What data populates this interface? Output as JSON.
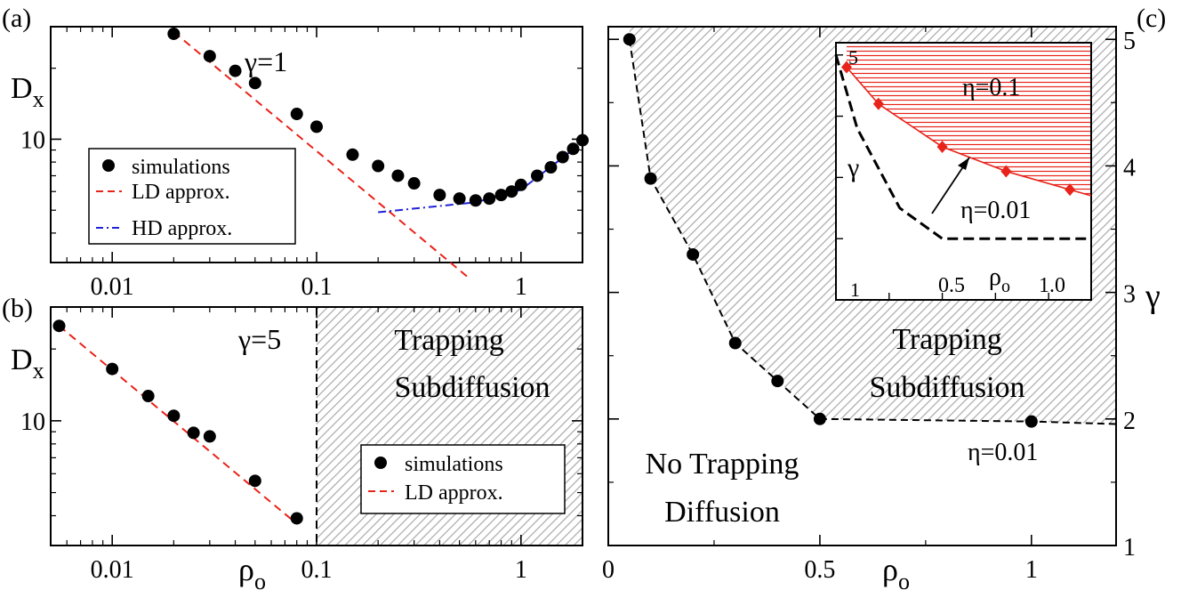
{
  "chart_data": [
    {
      "panel": "a",
      "panel_label": "(a)",
      "type": "scatter",
      "xscale": "log",
      "yscale": "log",
      "xlim": [
        0.005,
        2.0
      ],
      "ylim": [
        3.0,
        30.0
      ],
      "xticks": [
        {
          "v": 0.01,
          "label": "0.01"
        },
        {
          "v": 0.1,
          "label": "0.1"
        },
        {
          "v": 1,
          "label": "1"
        }
      ],
      "yticks": [
        {
          "v": 10,
          "label": "10"
        }
      ],
      "ylabel_main": "D",
      "ylabel_sub": "x",
      "annotation": "γ=1",
      "series": [
        {
          "name": "simulations",
          "kind": "points",
          "x": [
            0.02,
            0.03,
            0.04,
            0.05,
            0.08,
            0.1,
            0.15,
            0.2,
            0.25,
            0.3,
            0.4,
            0.5,
            0.6,
            0.7,
            0.8,
            0.9,
            1.0,
            1.2,
            1.4,
            1.6,
            1.8,
            2.0
          ],
          "y": [
            28,
            22.5,
            19.5,
            17.3,
            12.8,
            11.3,
            8.6,
            7.7,
            7.0,
            6.5,
            5.8,
            5.6,
            5.5,
            5.6,
            5.8,
            6.0,
            6.4,
            7.0,
            7.6,
            8.4,
            9.1,
            9.9
          ]
        },
        {
          "name": "LD approx.",
          "kind": "line",
          "color": "#e8231a",
          "dash": "dash",
          "x": [
            0.02,
            0.55
          ],
          "y": [
            28.5,
            2.6
          ]
        },
        {
          "name": "HD approx.",
          "kind": "line",
          "color": "#1f22d8",
          "dash": "dashdot",
          "x": [
            0.2,
            0.6,
            1.0,
            2.0
          ],
          "y": [
            4.9,
            5.4,
            6.1,
            9.7
          ]
        }
      ],
      "legend": [
        "simulations",
        "LD approx.",
        "HD approx."
      ]
    },
    {
      "panel": "b",
      "panel_label": "(b)",
      "type": "scatter",
      "xscale": "log",
      "yscale": "log",
      "xlim": [
        0.005,
        2.0
      ],
      "ylim": [
        3.0,
        30.0
      ],
      "xticks": [
        {
          "v": 0.01,
          "label": "0.01"
        },
        {
          "v": 0.1,
          "label": "0.1"
        },
        {
          "v": 1,
          "label": "1"
        }
      ],
      "yticks": [
        {
          "v": 10,
          "label": "10"
        }
      ],
      "ylabel_main": "D",
      "ylabel_sub": "x",
      "xlabel_main": "ρ",
      "xlabel_sub": "o",
      "annotation": "γ=5",
      "region_label": [
        "Trapping",
        "Subdiffusion"
      ],
      "trapping_boundary_x": 0.1,
      "series": [
        {
          "name": "simulations",
          "kind": "points",
          "x": [
            0.0055,
            0.01,
            0.015,
            0.02,
            0.025,
            0.03,
            0.05,
            0.08
          ],
          "y": [
            25,
            16.5,
            12.7,
            10.5,
            8.9,
            8.6,
            5.6,
            3.9
          ]
        },
        {
          "name": "LD approx.",
          "kind": "line",
          "color": "#e8231a",
          "dash": "dash",
          "x": [
            0.0055,
            0.08
          ],
          "y": [
            25,
            3.7
          ]
        }
      ],
      "legend": [
        "simulations",
        "LD approx."
      ]
    },
    {
      "panel": "c",
      "panel_label": "(c)",
      "type": "scatter",
      "xlim": [
        0,
        1.2
      ],
      "ylim": [
        1,
        5.1
      ],
      "xticks": [
        {
          "v": 0,
          "label": "0"
        },
        {
          "v": 0.5,
          "label": "0.5"
        },
        {
          "v": 1,
          "label": "1"
        }
      ],
      "yticks": [
        {
          "v": 1,
          "label": "1"
        },
        {
          "v": 2,
          "label": "2"
        },
        {
          "v": 3,
          "label": "3"
        },
        {
          "v": 4,
          "label": "4"
        },
        {
          "v": 5,
          "label": "5"
        }
      ],
      "xlabel_main": "ρ",
      "xlabel_sub": "o",
      "ylabel": "γ",
      "region_labels": {
        "trapping": [
          "Trapping",
          "Subdiffusion"
        ],
        "free": [
          "No Trapping",
          "Diffusion"
        ]
      },
      "eta_label": "η=0.01",
      "series": [
        {
          "name": "boundary",
          "kind": "points+dashed",
          "x": [
            0.05,
            0.1,
            0.2,
            0.3,
            0.4,
            0.5,
            1.0,
            1.2
          ],
          "y": [
            5.0,
            3.9,
            3.3,
            2.6,
            2.3,
            2.0,
            1.98,
            1.96
          ]
        }
      ],
      "inset": {
        "xlim": [
          0,
          1.2
        ],
        "ylim": [
          3.0,
          5.1
        ],
        "xtick_labels": [
          {
            "v": 0.5,
            "label": "0.5"
          },
          {
            "v": 1.0,
            "label": "1.0"
          }
        ],
        "ytick_labels": [
          {
            "v": 5,
            "label": "5"
          }
        ],
        "extra_labels": {
          "bottom_left": "1"
        },
        "ylabel": "γ",
        "xlabel_main": "ρ",
        "xlabel_sub": "o",
        "labels": {
          "high": "η=0.1",
          "low": "η=0.01"
        },
        "series": [
          {
            "name": "η=0.1",
            "kind": "diamonds+line",
            "color": "#e8231a",
            "x": [
              0.05,
              0.2,
              0.5,
              0.8,
              1.1
            ],
            "y": [
              4.9,
              4.6,
              4.25,
              4.05,
              3.9
            ]
          },
          {
            "name": "η=0.01",
            "kind": "dashed line",
            "color": "#000000",
            "x": [
              0.0,
              0.05,
              0.1,
              0.3,
              0.5,
              1.0,
              1.2
            ],
            "y": [
              5.0,
              4.7,
              4.4,
              3.75,
              3.5,
              3.5,
              3.5
            ]
          }
        ]
      }
    }
  ],
  "colors": {
    "ld": "#e8231a",
    "hd": "#1f22d8",
    "hatch": "#a9a9a9",
    "diamond": "#e8231a"
  }
}
